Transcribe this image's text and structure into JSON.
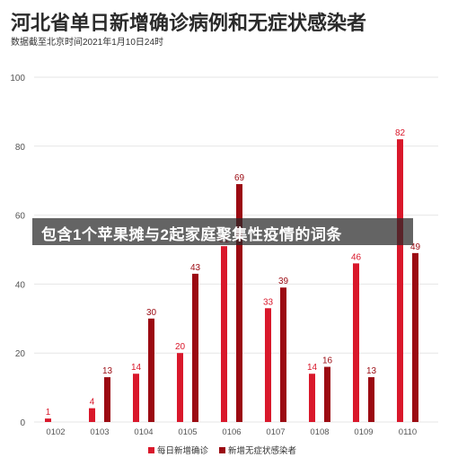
{
  "header": {
    "title": "河北省单日新增确诊病例和无症状感染者",
    "subtitle": "数据截至北京时间2021年1月10日24时"
  },
  "overlay": {
    "caption": "包含1个苹果摊与2起家庭聚集性疫情的词条"
  },
  "colors": {
    "confirmed": "#d9182b",
    "asymptomatic": "#9b0a12",
    "grid": "#e6e6e6",
    "axis_text": "#555555"
  },
  "chart_data": {
    "type": "bar",
    "categories": [
      "0102",
      "0103",
      "0104",
      "0105",
      "0106",
      "0107",
      "0108",
      "0109",
      "0110"
    ],
    "series": [
      {
        "name": "每日新增确诊",
        "values": [
          1,
          4,
          14,
          20,
          51,
          33,
          14,
          46,
          82
        ]
      },
      {
        "name": "新增无症状感染者",
        "values": [
          null,
          13,
          30,
          43,
          69,
          39,
          16,
          13,
          49
        ]
      }
    ],
    "ylim": [
      0,
      100
    ],
    "yticks": [
      0,
      20,
      40,
      60,
      80,
      100
    ],
    "grid": true,
    "legend": "bottom"
  }
}
